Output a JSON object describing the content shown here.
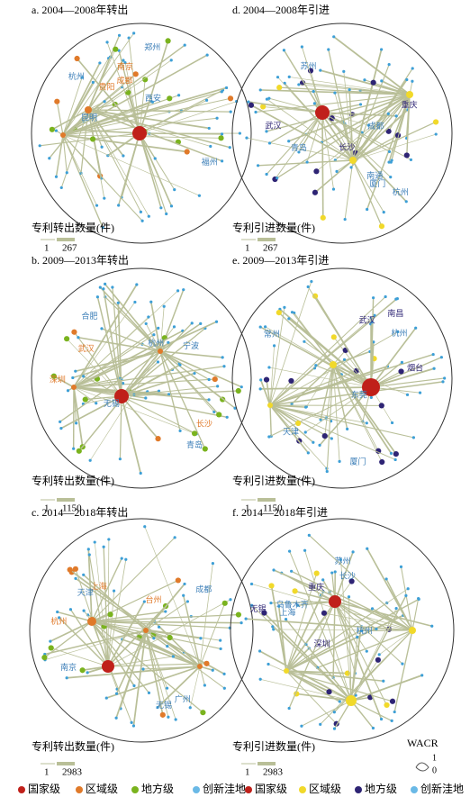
{
  "panels": [
    {
      "title": "a. 2004—2008年转出",
      "legend_title": "专利转出数量(件)",
      "legend_min": 1,
      "legend_max": 267,
      "labels": [
        "成都",
        "杭州",
        "郑州",
        "南京",
        "西安",
        "福州",
        "贵阳",
        "昆明"
      ]
    },
    {
      "title": "d. 2004—2008年引进",
      "legend_title": "专利引进数量(件)",
      "legend_min": 1,
      "legend_max": 267,
      "labels": [
        "长沙",
        "厦门",
        "成都",
        "武汉",
        "杭州",
        "苏州",
        "重庆",
        "南通",
        "青岛"
      ]
    },
    {
      "title": "b. 2009—2013年转出",
      "legend_title": "专利转出数量(件)",
      "legend_min": 1,
      "legend_max": 1150,
      "labels": [
        "武汉",
        "杭州",
        "宁波",
        "深圳",
        "合肥",
        "青岛",
        "长沙",
        "无锡"
      ]
    },
    {
      "title": "e. 2009—2013年引进",
      "legend_title": "专利引进数量(件)",
      "legend_min": 1,
      "legend_max": 1150,
      "labels": [
        "武汉",
        "杭州",
        "天津",
        "南昌",
        "常州",
        "东莞",
        "烟台",
        "厦门"
      ]
    },
    {
      "title": "c. 2014—2018年转出",
      "legend_title": "专利转出数量(件)",
      "legend_min": 1,
      "legend_max": 2983,
      "labels": [
        "上海",
        "广州",
        "天津",
        "杭州",
        "成都",
        "无锡",
        "台州",
        "南京"
      ]
    },
    {
      "title": "f. 2014—2018年引进",
      "legend_title": "专利引进数量(件)",
      "legend_min": 1,
      "legend_max": 2983,
      "labels": [
        "深圳",
        "上海",
        "杭州",
        "无锡",
        "苏州",
        "长沙",
        "重庆",
        "乌鲁木齐"
      ]
    }
  ],
  "legend": {
    "items": [
      "国家级",
      "区域级",
      "地方级",
      "创新洼地",
      "国家级",
      "区域级",
      "地方级",
      "创新洼地"
    ]
  },
  "wacr": {
    "title": "WACR",
    "top": 1,
    "bottom": 0
  }
}
